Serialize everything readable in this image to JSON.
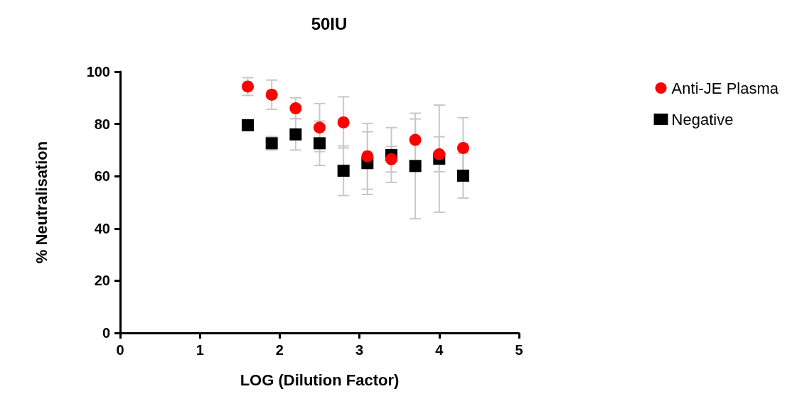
{
  "chart_data": {
    "type": "scatter",
    "title": "50IU",
    "xlabel": "LOG (Dilution Factor)",
    "ylabel": "% Neutralisation",
    "x": [
      1.6,
      1.9,
      2.2,
      2.5,
      2.8,
      3.1,
      3.4,
      3.7,
      4.0,
      4.3
    ],
    "series": [
      {
        "name": "Anti-JE Plasma",
        "color": "#ff0000",
        "marker": "circle",
        "values": [
          94.3,
          91.2,
          86.0,
          78.6,
          80.6,
          67.6,
          66.5,
          73.9,
          68.4,
          70.8
        ],
        "errors": [
          3.4,
          5.6,
          4,
          9.2,
          9.8,
          12.6,
          4.9,
          8,
          6.7,
          11.6
        ]
      },
      {
        "name": "Negative",
        "color": "#000000",
        "marker": "square",
        "values": [
          79.5,
          72.6,
          76.0,
          72.6,
          62.1,
          65,
          68.1,
          63.9,
          66.7,
          60.2
        ],
        "errors": [
          null,
          2.6,
          6,
          8.5,
          9.5,
          12,
          10.5,
          20.2,
          20.5,
          8.6
        ]
      }
    ],
    "xlim": [
      0,
      5
    ],
    "xticks": [
      0,
      1,
      2,
      3,
      4,
      5
    ],
    "ylim": [
      0,
      100
    ],
    "yticks": [
      0,
      20,
      40,
      60,
      80,
      100
    ],
    "grid": false,
    "legend": "top right"
  }
}
